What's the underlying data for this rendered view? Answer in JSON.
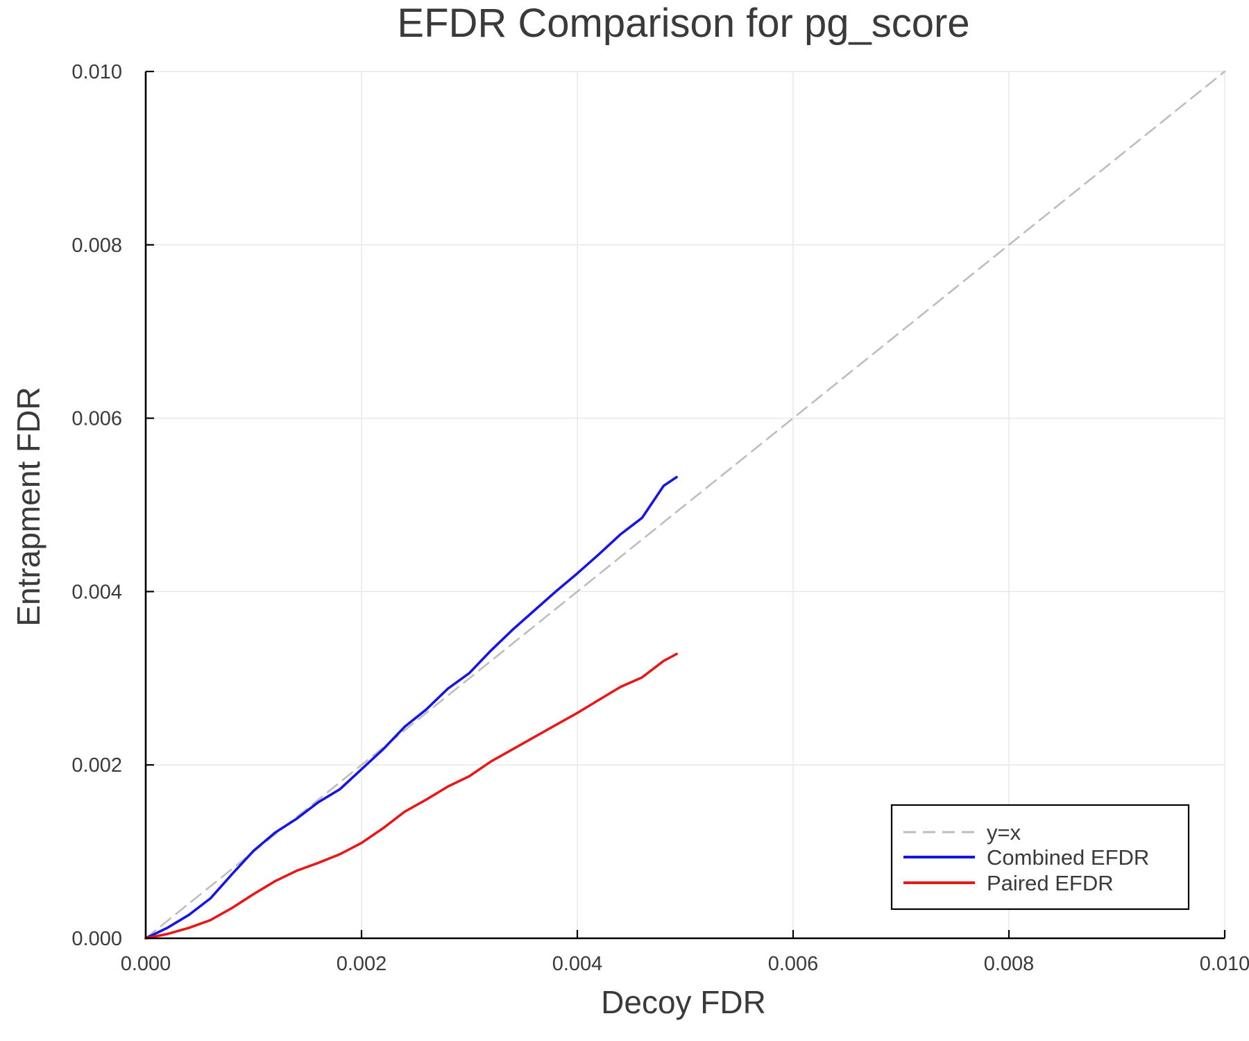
{
  "chart_data": {
    "type": "line",
    "title": "EFDR Comparison for pg_score",
    "xlabel": "Decoy FDR",
    "ylabel": "Entrapment FDR",
    "xlim": [
      0,
      0.01
    ],
    "ylim": [
      0,
      0.01
    ],
    "xticks": [
      "0.000",
      "0.002",
      "0.004",
      "0.006",
      "0.008",
      "0.010"
    ],
    "yticks": [
      "0.000",
      "0.002",
      "0.004",
      "0.006",
      "0.008",
      "0.010"
    ],
    "grid": true,
    "legend_position": "bottom-right",
    "series": [
      {
        "name": "y=x",
        "color": "#bdbdbd",
        "dash": true,
        "x": [
          0,
          0.01
        ],
        "y": [
          0,
          0.01
        ]
      },
      {
        "name": "Combined EFDR",
        "color": "#1515e6",
        "dash": false,
        "x": [
          0,
          0.0002,
          0.0004,
          0.0006,
          0.0008,
          0.001,
          0.0012,
          0.0014,
          0.0016,
          0.0018,
          0.002,
          0.0022,
          0.0024,
          0.0026,
          0.0028,
          0.003,
          0.0032,
          0.0034,
          0.0036,
          0.0038,
          0.004,
          0.0042,
          0.0044,
          0.0046,
          0.0048,
          0.00492
        ],
        "y": [
          0,
          0.00012,
          0.00027,
          0.00046,
          0.00074,
          0.00101,
          0.00122,
          0.00138,
          0.00157,
          0.00172,
          0.00195,
          0.00218,
          0.00244,
          0.00264,
          0.00288,
          0.00306,
          0.00332,
          0.00356,
          0.00378,
          0.004,
          0.00421,
          0.00443,
          0.00466,
          0.00485,
          0.00522,
          0.00532
        ]
      },
      {
        "name": "Paired EFDR",
        "color": "#e81818",
        "dash": false,
        "x": [
          0,
          0.0002,
          0.0004,
          0.0006,
          0.0008,
          0.001,
          0.0012,
          0.0014,
          0.0016,
          0.0018,
          0.002,
          0.0022,
          0.0024,
          0.0026,
          0.0028,
          0.003,
          0.0032,
          0.0034,
          0.0036,
          0.0038,
          0.004,
          0.0042,
          0.0044,
          0.0046,
          0.0048,
          0.00492
        ],
        "y": [
          0,
          5e-05,
          0.00012,
          0.00021,
          0.00035,
          0.00051,
          0.00066,
          0.00078,
          0.00087,
          0.00097,
          0.0011,
          0.00127,
          0.00146,
          0.0016,
          0.00175,
          0.00187,
          0.00204,
          0.00218,
          0.00232,
          0.00246,
          0.0026,
          0.00275,
          0.0029,
          0.00301,
          0.0032,
          0.00328
        ]
      }
    ]
  }
}
